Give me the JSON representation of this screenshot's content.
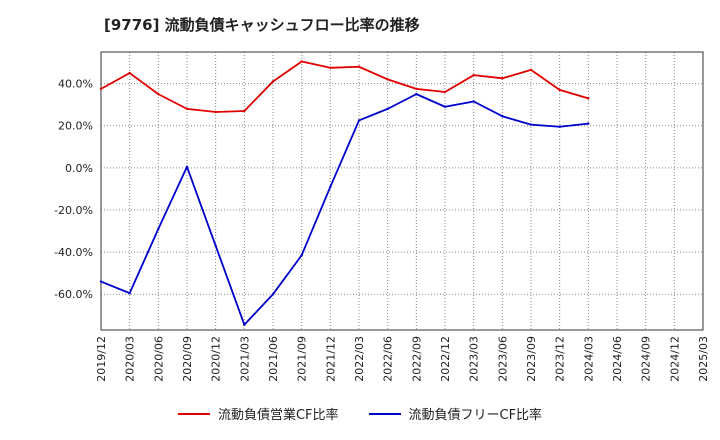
{
  "title": "[9776]  流動負債キャッシュフロー比率の推移",
  "chart_data": {
    "type": "line",
    "title": "[9776]  流動負債キャッシュフロー比率の推移",
    "xlabel": "",
    "ylabel": "",
    "ylim": [
      -77,
      55
    ],
    "y_ticks": [
      -60,
      -40,
      -20,
      0,
      20,
      40
    ],
    "y_tick_labels": [
      "-60.0%",
      "-40.0%",
      "-20.0%",
      "0.0%",
      "20.0%",
      "40.0%"
    ],
    "grid": true,
    "legend_position": "bottom",
    "categories": [
      "2019/12",
      "2020/03",
      "2020/06",
      "2020/09",
      "2020/12",
      "2021/03",
      "2021/06",
      "2021/09",
      "2021/12",
      "2022/03",
      "2022/06",
      "2022/09",
      "2022/12",
      "2023/03",
      "2023/06",
      "2023/09",
      "2023/12",
      "2024/03",
      "2024/06",
      "2024/09",
      "2024/12",
      "2025/03"
    ],
    "series": [
      {
        "name": "流動負債営業CF比率",
        "color": "#e00000",
        "values": [
          37.5,
          45,
          35,
          28,
          26.5,
          27,
          41,
          50.5,
          47.5,
          48,
          42,
          37.5,
          36,
          44,
          42.5,
          46.5,
          37,
          33,
          null,
          null,
          null,
          null
        ]
      },
      {
        "name": "流動負債フリーCF比率",
        "color": "#0000cc",
        "values": [
          -54,
          -59.5,
          -29,
          0.5,
          -37,
          -74.5,
          -60,
          -41.5,
          -9,
          22.5,
          28,
          35,
          29,
          31.5,
          24.5,
          20.5,
          19.5,
          21,
          null,
          null,
          null,
          null
        ]
      }
    ]
  }
}
